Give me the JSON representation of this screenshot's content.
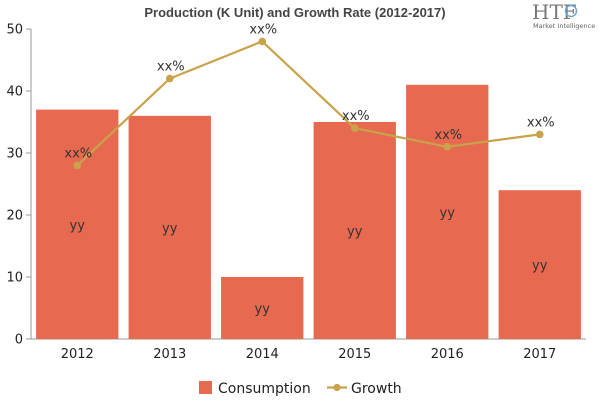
{
  "chart_data": {
    "type": "bar",
    "title": "Production (K Unit) and Growth Rate (2012-2017)",
    "categories": [
      "2012",
      "2013",
      "2014",
      "2015",
      "2016",
      "2017"
    ],
    "ylim": [
      0,
      50
    ],
    "yticks": [
      0,
      10,
      20,
      30,
      40,
      50
    ],
    "grid": false,
    "legend_position": "bottom",
    "series": [
      {
        "name": "Consumption",
        "type": "bar",
        "color": "#E76A50",
        "values": [
          37,
          36,
          10,
          35,
          41,
          24
        ],
        "labels": [
          "yy",
          "yy",
          "yy",
          "yy",
          "yy",
          "yy"
        ]
      },
      {
        "name": "Growth",
        "type": "line",
        "color": "#C9A24B",
        "values": [
          28,
          42,
          48,
          34,
          31,
          33
        ],
        "labels": [
          "xx%",
          "xx%",
          "xx%",
          "xx%",
          "xx%",
          "xx%"
        ]
      }
    ]
  },
  "logo": {
    "text": "HTF",
    "subtext": "Market Intelligence"
  }
}
